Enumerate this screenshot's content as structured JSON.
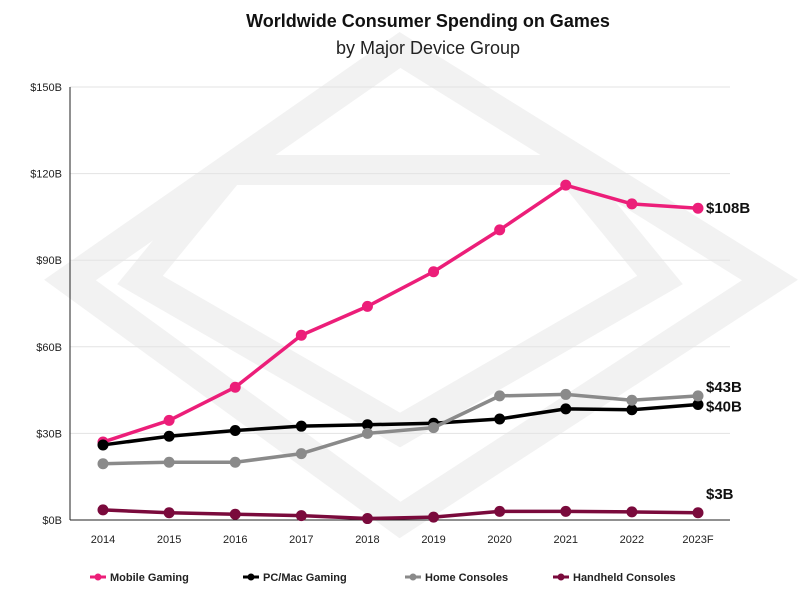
{
  "chart_data": {
    "type": "line",
    "title": "Worldwide Consumer Spending on Games",
    "subtitle": "by Major Device Group",
    "xlabel": "",
    "ylabel": "",
    "ylim": [
      0,
      150
    ],
    "yticks": [
      0,
      30,
      60,
      90,
      120,
      150
    ],
    "ytick_labels": [
      "$0B",
      "$30B",
      "$60B",
      "$90B",
      "$120B",
      "$150B"
    ],
    "categories": [
      "2014",
      "2015",
      "2016",
      "2017",
      "2018",
      "2019",
      "2020",
      "2021",
      "2022",
      "2023F"
    ],
    "grid": true,
    "legend_position": "bottom",
    "series": [
      {
        "name": "Mobile Gaming",
        "color": "#ec1e79",
        "values": [
          27,
          34.5,
          46,
          64,
          74,
          86,
          100.5,
          116,
          109.5,
          108
        ],
        "end_label": "$108B"
      },
      {
        "name": "PC/Mac Gaming",
        "color": "#000000",
        "values": [
          26,
          29,
          31,
          32.5,
          33,
          33.5,
          35,
          38.5,
          38.2,
          40
        ],
        "end_label": "$40B"
      },
      {
        "name": "Home Consoles",
        "color": "#8a8a8a",
        "values": [
          19.5,
          20,
          20,
          23,
          30,
          32,
          43,
          43.5,
          41.5,
          43
        ],
        "end_label": "$43B"
      },
      {
        "name": "Handheld Consoles",
        "color": "#7a0a3c",
        "values": [
          3.5,
          2.5,
          2,
          1.5,
          0.5,
          1,
          3,
          3,
          2.8,
          2.5
        ],
        "end_label": "$3B"
      }
    ]
  }
}
